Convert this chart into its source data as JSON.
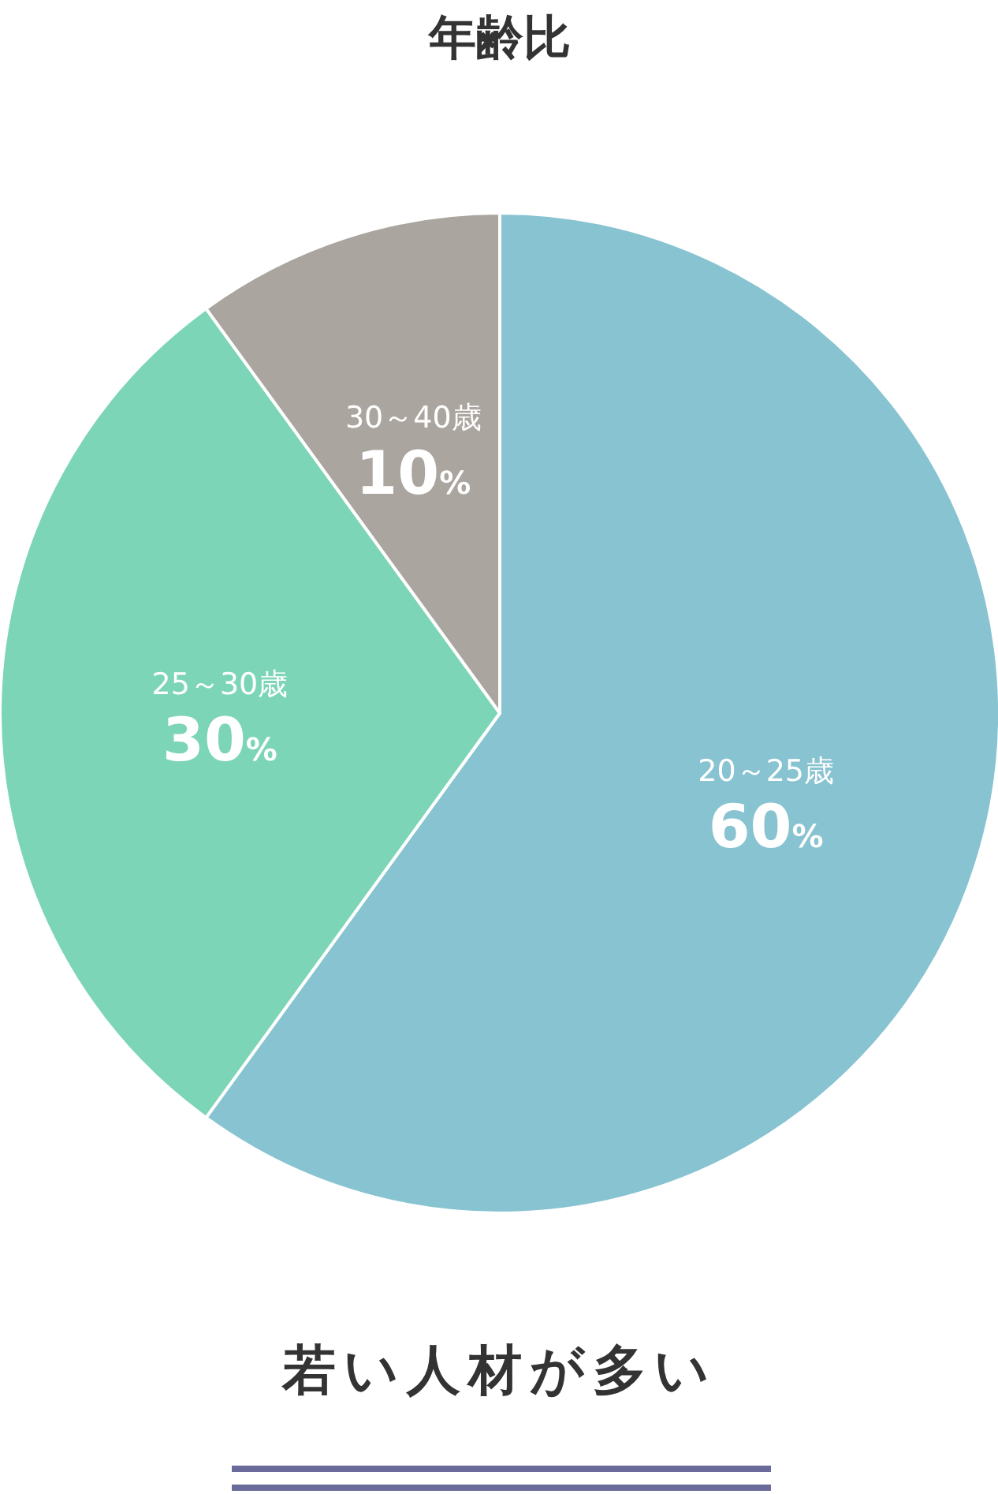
{
  "chart_data": {
    "type": "pie",
    "title": "年齢比",
    "categories": [
      "20～25歳",
      "25～30歳",
      "30～40歳"
    ],
    "values": [
      60,
      30,
      10
    ],
    "colors": [
      "#88c3d1",
      "#7dd5b8",
      "#aaa59e"
    ],
    "value_labels": [
      "60%",
      "30%",
      "10%"
    ],
    "annotations": [
      "若い人材が多い"
    ]
  }
}
